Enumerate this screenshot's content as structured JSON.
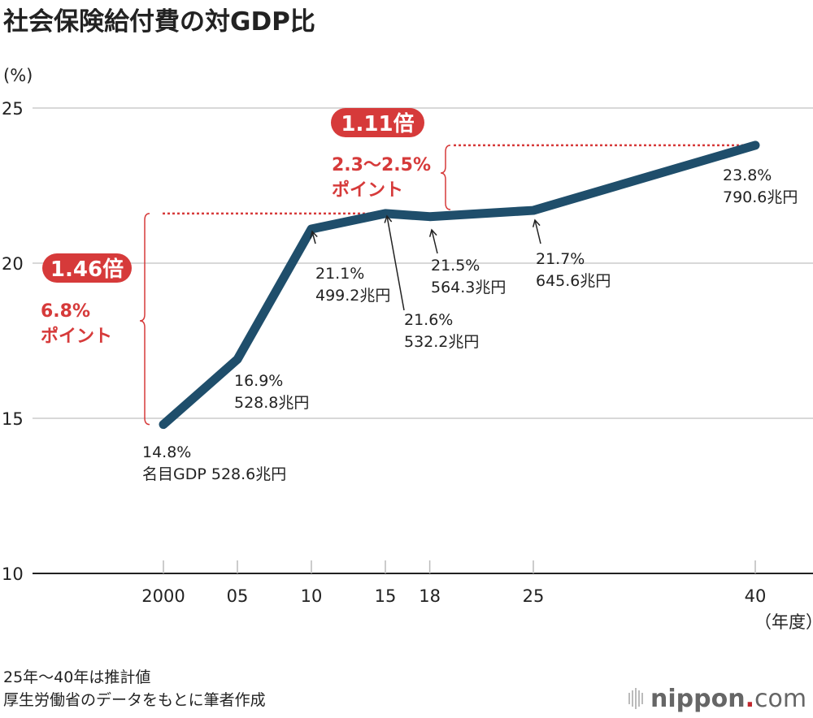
{
  "chart_data": {
    "type": "line",
    "title": "社会保険給付費の対GDP比",
    "ylabel": "(%)",
    "xlabel": "（年度）",
    "ylim": [
      10,
      25
    ],
    "yticks": [
      "10",
      "15",
      "20",
      "25"
    ],
    "grid": true,
    "x": [
      2000,
      2005,
      2010,
      2015,
      2018,
      2025,
      2040
    ],
    "xtick_labels": [
      "2000",
      "05",
      "10",
      "15",
      "18",
      "25",
      "40"
    ],
    "values": [
      14.8,
      16.9,
      21.1,
      21.6,
      21.5,
      21.7,
      23.8
    ],
    "line_color": "#1f4e6b",
    "accent_color": "#d63a3a",
    "data_labels": [
      {
        "pct": "14.8%",
        "gdp": "名目GDP 528.6兆円"
      },
      {
        "pct": "16.9%",
        "gdp": "528.8兆円"
      },
      {
        "pct": "21.1%",
        "gdp": "499.2兆円"
      },
      {
        "pct": "21.6%",
        "gdp": "532.2兆円"
      },
      {
        "pct": "21.5%",
        "gdp": "564.3兆円"
      },
      {
        "pct": "21.7%",
        "gdp": "645.6兆円"
      },
      {
        "pct": "23.8%",
        "gdp": "790.6兆円"
      }
    ],
    "annotations": [
      {
        "badge": "1.46倍",
        "line1": "6.8%",
        "line2": "ポイント"
      },
      {
        "badge": "1.11倍",
        "line1": "2.3〜2.5%",
        "line2": "ポイント"
      }
    ]
  },
  "notes": [
    "25年〜40年は推計値",
    "厚生労働省のデータをもとに筆者作成"
  ],
  "logo": {
    "text_main": "nippon",
    "text_dot": ".",
    "text_suffix": "com"
  }
}
